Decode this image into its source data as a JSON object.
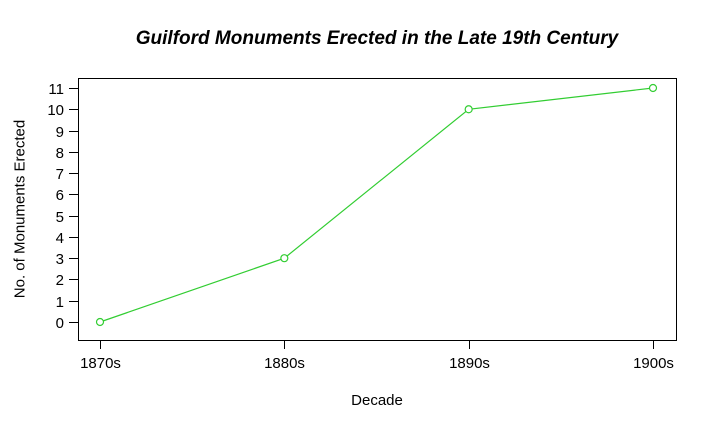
{
  "chart_data": {
    "type": "line",
    "title": "Guilford Monuments Erected in the Late 19th Century",
    "xlabel": "Decade",
    "ylabel": "No. of Monuments Erected",
    "categories": [
      "1870s",
      "1880s",
      "1890s",
      "1900s"
    ],
    "series": [
      {
        "name": "Monuments Erected",
        "values": [
          0,
          3,
          10,
          11
        ]
      }
    ],
    "yticks": [
      0,
      1,
      2,
      3,
      4,
      5,
      6,
      7,
      8,
      9,
      10,
      11
    ],
    "ylim": [
      0,
      11
    ],
    "grid": false,
    "legend": "none",
    "line_color": "#32cd32",
    "marker": "open-circle",
    "marker_fill": "#ffffff",
    "axis_color": "#000000",
    "text_color": "#000000",
    "background": "#ffffff"
  }
}
